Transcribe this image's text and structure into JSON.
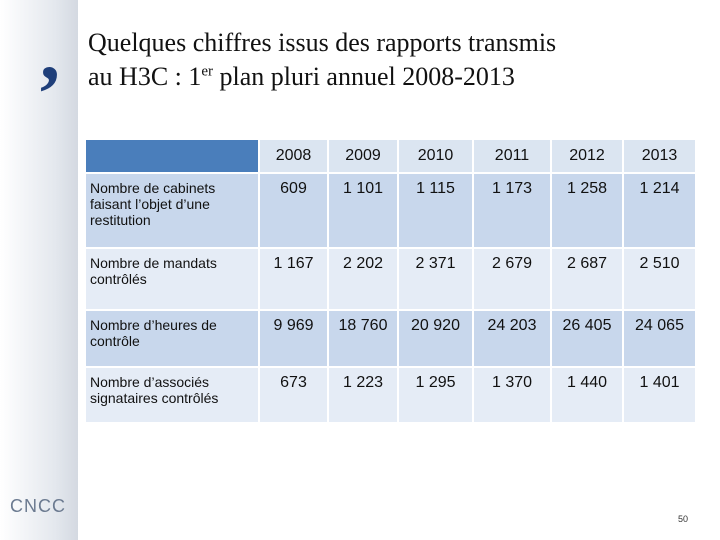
{
  "header": {
    "title_line1": "Quelques chiffres issus des rapports transmis",
    "title_line2_a": "au H3C : 1",
    "title_line2_sup": "er",
    "title_line2_b": " plan pluri annuel 2008-2013"
  },
  "table": {
    "columns": [
      "2008",
      "2009",
      "2010",
      "2011",
      "2012",
      "2013"
    ],
    "rows": [
      [
        "Nombre de cabinets faisant l’objet d’une restitution",
        "609",
        "1 101",
        "1 115",
        "1 173",
        "1 258",
        "1 214"
      ],
      [
        "Nombre de mandats contrôlés",
        "1 167",
        "2 202",
        "2 371",
        "2 679",
        "2 687",
        "2 510"
      ],
      [
        "Nombre d’heures de contrôle",
        "9 969",
        "18 760",
        "20 920",
        "24 203",
        "26 405",
        "24 065"
      ],
      [
        "Nombre d’associés signataires contrôlés",
        "673",
        "1 223",
        "1 295",
        "1 370",
        "1 440",
        "1 401"
      ]
    ]
  },
  "footer": {
    "logo": "CNCC",
    "page_number": "50"
  }
}
